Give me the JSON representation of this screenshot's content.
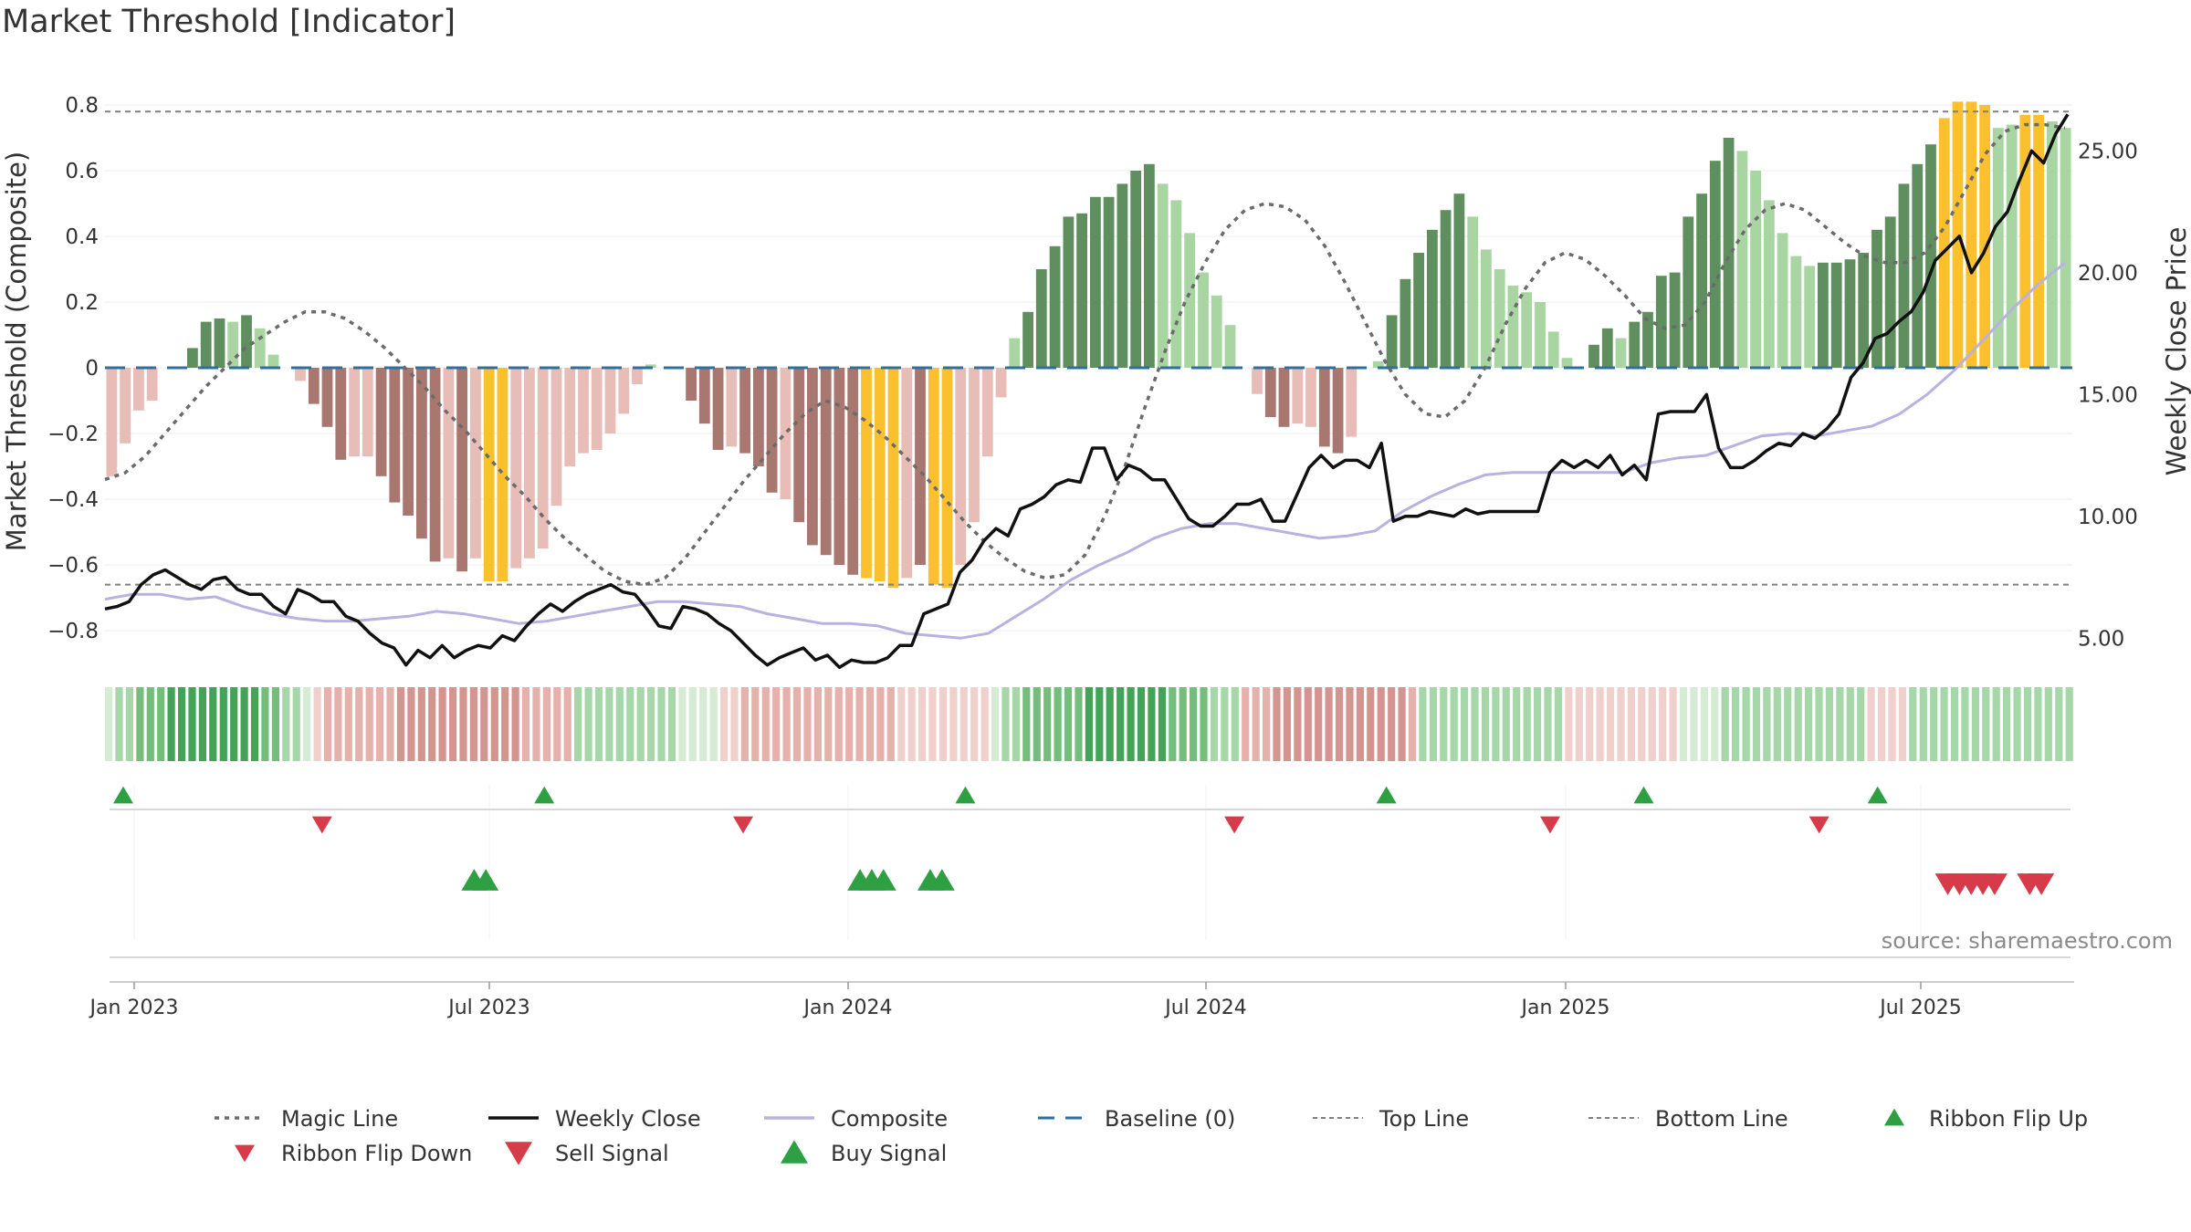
{
  "title": "Market Threshold [Indicator]",
  "source": "source: sharemaestro.com",
  "colors": {
    "strong_up": "#5f8f5f",
    "weak_up": "#a8d5a2",
    "strong_down": "#a87870",
    "weak_down": "#e9bdb7",
    "extreme": "#fbc02d",
    "weekly_close": "#111111",
    "composite": "#b9b2e0",
    "magic_line": "#6b6b6b",
    "baseline": "#2f6f9f",
    "threshold": "#808080",
    "buy": "#2ea043",
    "sell": "#d73a49"
  },
  "chart_data": {
    "type": "bar",
    "title": "Market Threshold [Indicator]",
    "ylabel": "Market Threshold (Composite)",
    "y2label": "Weekly Close Price",
    "ylim": [
      -0.9,
      0.85
    ],
    "y2lim": [
      3.0,
      26.0
    ],
    "yticks": [
      "0.8",
      "0.6",
      "0.4",
      "0.2",
      "0",
      "−0.2",
      "−0.4",
      "−0.6",
      "−0.8"
    ],
    "y2ticks": [
      "25.00",
      "20.00",
      "15.00",
      "10.00",
      "5.00"
    ],
    "xticks": [
      "Jan 2023",
      "Jul 2023",
      "Jan 2024",
      "Jul 2024",
      "Jan 2025",
      "Jul 2025"
    ],
    "top_line": 0.78,
    "bottom_line": -0.66,
    "baseline": 0,
    "bars": [
      {
        "v": -0.33,
        "c": "weak_down"
      },
      {
        "v": -0.23,
        "c": "weak_down"
      },
      {
        "v": -0.13,
        "c": "weak_down"
      },
      {
        "v": -0.1,
        "c": "weak_down"
      },
      {
        "v": 0.0,
        "c": "weak_down"
      },
      {
        "v": 0.0,
        "c": "weak_up"
      },
      {
        "v": 0.06,
        "c": "strong_up"
      },
      {
        "v": 0.14,
        "c": "strong_up"
      },
      {
        "v": 0.15,
        "c": "strong_up"
      },
      {
        "v": 0.14,
        "c": "weak_up"
      },
      {
        "v": 0.16,
        "c": "strong_up"
      },
      {
        "v": 0.12,
        "c": "weak_up"
      },
      {
        "v": 0.04,
        "c": "weak_up"
      },
      {
        "v": 0.0,
        "c": "weak_up"
      },
      {
        "v": -0.04,
        "c": "weak_down"
      },
      {
        "v": -0.11,
        "c": "strong_down"
      },
      {
        "v": -0.18,
        "c": "strong_down"
      },
      {
        "v": -0.28,
        "c": "strong_down"
      },
      {
        "v": -0.27,
        "c": "weak_down"
      },
      {
        "v": -0.27,
        "c": "weak_down"
      },
      {
        "v": -0.33,
        "c": "strong_down"
      },
      {
        "v": -0.41,
        "c": "strong_down"
      },
      {
        "v": -0.45,
        "c": "strong_down"
      },
      {
        "v": -0.52,
        "c": "strong_down"
      },
      {
        "v": -0.59,
        "c": "strong_down"
      },
      {
        "v": -0.58,
        "c": "weak_down"
      },
      {
        "v": -0.62,
        "c": "strong_down"
      },
      {
        "v": -0.58,
        "c": "weak_down"
      },
      {
        "v": -0.65,
        "c": "extreme"
      },
      {
        "v": -0.65,
        "c": "extreme"
      },
      {
        "v": -0.61,
        "c": "weak_down"
      },
      {
        "v": -0.58,
        "c": "weak_down"
      },
      {
        "v": -0.55,
        "c": "weak_down"
      },
      {
        "v": -0.42,
        "c": "weak_down"
      },
      {
        "v": -0.3,
        "c": "weak_down"
      },
      {
        "v": -0.26,
        "c": "weak_down"
      },
      {
        "v": -0.25,
        "c": "weak_down"
      },
      {
        "v": -0.2,
        "c": "weak_down"
      },
      {
        "v": -0.14,
        "c": "weak_down"
      },
      {
        "v": -0.05,
        "c": "weak_down"
      },
      {
        "v": 0.01,
        "c": "weak_up"
      },
      {
        "v": 0.0,
        "c": "weak_up"
      },
      {
        "v": 0.0,
        "c": "weak_up"
      },
      {
        "v": -0.1,
        "c": "strong_down"
      },
      {
        "v": -0.17,
        "c": "strong_down"
      },
      {
        "v": -0.25,
        "c": "strong_down"
      },
      {
        "v": -0.24,
        "c": "weak_down"
      },
      {
        "v": -0.26,
        "c": "strong_down"
      },
      {
        "v": -0.3,
        "c": "strong_down"
      },
      {
        "v": -0.38,
        "c": "strong_down"
      },
      {
        "v": -0.4,
        "c": "weak_down"
      },
      {
        "v": -0.47,
        "c": "strong_down"
      },
      {
        "v": -0.54,
        "c": "strong_down"
      },
      {
        "v": -0.57,
        "c": "strong_down"
      },
      {
        "v": -0.6,
        "c": "strong_down"
      },
      {
        "v": -0.63,
        "c": "strong_down"
      },
      {
        "v": -0.64,
        "c": "extreme"
      },
      {
        "v": -0.65,
        "c": "extreme"
      },
      {
        "v": -0.67,
        "c": "extreme"
      },
      {
        "v": -0.64,
        "c": "weak_down"
      },
      {
        "v": -0.6,
        "c": "strong_down"
      },
      {
        "v": -0.66,
        "c": "extreme"
      },
      {
        "v": -0.67,
        "c": "extreme"
      },
      {
        "v": -0.6,
        "c": "weak_down"
      },
      {
        "v": -0.47,
        "c": "weak_down"
      },
      {
        "v": -0.27,
        "c": "weak_down"
      },
      {
        "v": -0.09,
        "c": "weak_down"
      },
      {
        "v": 0.09,
        "c": "weak_up"
      },
      {
        "v": 0.17,
        "c": "strong_up"
      },
      {
        "v": 0.3,
        "c": "strong_up"
      },
      {
        "v": 0.37,
        "c": "strong_up"
      },
      {
        "v": 0.46,
        "c": "strong_up"
      },
      {
        "v": 0.47,
        "c": "strong_up"
      },
      {
        "v": 0.52,
        "c": "strong_up"
      },
      {
        "v": 0.52,
        "c": "strong_up"
      },
      {
        "v": 0.56,
        "c": "strong_up"
      },
      {
        "v": 0.6,
        "c": "strong_up"
      },
      {
        "v": 0.62,
        "c": "strong_up"
      },
      {
        "v": 0.56,
        "c": "weak_up"
      },
      {
        "v": 0.51,
        "c": "weak_up"
      },
      {
        "v": 0.41,
        "c": "weak_up"
      },
      {
        "v": 0.29,
        "c": "weak_up"
      },
      {
        "v": 0.22,
        "c": "weak_up"
      },
      {
        "v": 0.13,
        "c": "weak_up"
      },
      {
        "v": 0.0,
        "c": "weak_up"
      },
      {
        "v": -0.08,
        "c": "weak_down"
      },
      {
        "v": -0.15,
        "c": "strong_down"
      },
      {
        "v": -0.18,
        "c": "strong_down"
      },
      {
        "v": -0.17,
        "c": "weak_down"
      },
      {
        "v": -0.18,
        "c": "weak_down"
      },
      {
        "v": -0.24,
        "c": "strong_down"
      },
      {
        "v": -0.26,
        "c": "strong_down"
      },
      {
        "v": -0.21,
        "c": "weak_down"
      },
      {
        "v": 0.0,
        "c": "weak_up"
      },
      {
        "v": 0.02,
        "c": "weak_up"
      },
      {
        "v": 0.16,
        "c": "strong_up"
      },
      {
        "v": 0.27,
        "c": "strong_up"
      },
      {
        "v": 0.35,
        "c": "strong_up"
      },
      {
        "v": 0.42,
        "c": "strong_up"
      },
      {
        "v": 0.48,
        "c": "strong_up"
      },
      {
        "v": 0.53,
        "c": "strong_up"
      },
      {
        "v": 0.46,
        "c": "weak_up"
      },
      {
        "v": 0.36,
        "c": "weak_up"
      },
      {
        "v": 0.3,
        "c": "weak_up"
      },
      {
        "v": 0.25,
        "c": "weak_up"
      },
      {
        "v": 0.23,
        "c": "weak_up"
      },
      {
        "v": 0.2,
        "c": "weak_up"
      },
      {
        "v": 0.11,
        "c": "weak_up"
      },
      {
        "v": 0.03,
        "c": "weak_up"
      },
      {
        "v": 0.0,
        "c": "weak_up"
      },
      {
        "v": 0.07,
        "c": "strong_up"
      },
      {
        "v": 0.12,
        "c": "strong_up"
      },
      {
        "v": 0.09,
        "c": "weak_up"
      },
      {
        "v": 0.14,
        "c": "strong_up"
      },
      {
        "v": 0.17,
        "c": "strong_up"
      },
      {
        "v": 0.28,
        "c": "strong_up"
      },
      {
        "v": 0.29,
        "c": "strong_up"
      },
      {
        "v": 0.46,
        "c": "strong_up"
      },
      {
        "v": 0.53,
        "c": "strong_up"
      },
      {
        "v": 0.63,
        "c": "strong_up"
      },
      {
        "v": 0.7,
        "c": "strong_up"
      },
      {
        "v": 0.66,
        "c": "weak_up"
      },
      {
        "v": 0.6,
        "c": "weak_up"
      },
      {
        "v": 0.51,
        "c": "weak_up"
      },
      {
        "v": 0.41,
        "c": "weak_up"
      },
      {
        "v": 0.34,
        "c": "weak_up"
      },
      {
        "v": 0.31,
        "c": "weak_up"
      },
      {
        "v": 0.32,
        "c": "strong_up"
      },
      {
        "v": 0.32,
        "c": "strong_up"
      },
      {
        "v": 0.33,
        "c": "strong_up"
      },
      {
        "v": 0.35,
        "c": "strong_up"
      },
      {
        "v": 0.42,
        "c": "strong_up"
      },
      {
        "v": 0.46,
        "c": "strong_up"
      },
      {
        "v": 0.56,
        "c": "strong_up"
      },
      {
        "v": 0.62,
        "c": "strong_up"
      },
      {
        "v": 0.68,
        "c": "strong_up"
      },
      {
        "v": 0.76,
        "c": "extreme"
      },
      {
        "v": 0.81,
        "c": "extreme"
      },
      {
        "v": 0.81,
        "c": "extreme"
      },
      {
        "v": 0.8,
        "c": "extreme"
      },
      {
        "v": 0.73,
        "c": "weak_up"
      },
      {
        "v": 0.74,
        "c": "weak_up"
      },
      {
        "v": 0.77,
        "c": "extreme"
      },
      {
        "v": 0.77,
        "c": "extreme"
      },
      {
        "v": 0.75,
        "c": "weak_up"
      },
      {
        "v": 0.73,
        "c": "weak_up"
      }
    ],
    "magic_line": [
      -0.34,
      -0.32,
      -0.27,
      -0.2,
      -0.13,
      -0.06,
      0.0,
      0.06,
      0.1,
      0.14,
      0.17,
      0.17,
      0.15,
      0.11,
      0.06,
      0.0,
      -0.06,
      -0.13,
      -0.19,
      -0.26,
      -0.33,
      -0.39,
      -0.46,
      -0.52,
      -0.57,
      -0.62,
      -0.65,
      -0.66,
      -0.64,
      -0.58,
      -0.5,
      -0.42,
      -0.34,
      -0.27,
      -0.2,
      -0.14,
      -0.1,
      -0.12,
      -0.16,
      -0.21,
      -0.27,
      -0.33,
      -0.4,
      -0.47,
      -0.53,
      -0.58,
      -0.62,
      -0.64,
      -0.63,
      -0.57,
      -0.45,
      -0.3,
      -0.12,
      0.05,
      0.2,
      0.32,
      0.42,
      0.48,
      0.5,
      0.49,
      0.45,
      0.37,
      0.26,
      0.14,
      0.02,
      -0.08,
      -0.14,
      -0.15,
      -0.1,
      0.0,
      0.13,
      0.24,
      0.32,
      0.35,
      0.33,
      0.28,
      0.22,
      0.15,
      0.12,
      0.13,
      0.2,
      0.32,
      0.42,
      0.48,
      0.5,
      0.48,
      0.43,
      0.38,
      0.34,
      0.32,
      0.32,
      0.35,
      0.43,
      0.54,
      0.65,
      0.72,
      0.74,
      0.74,
      0.73
    ],
    "weekly_close": [
      6.2,
      6.3,
      6.5,
      7.2,
      7.6,
      7.8,
      7.5,
      7.2,
      7.0,
      7.4,
      7.5,
      7.0,
      6.8,
      6.8,
      6.3,
      6.0,
      7.0,
      6.8,
      6.5,
      6.5,
      5.9,
      5.7,
      5.2,
      4.8,
      4.6,
      3.9,
      4.5,
      4.2,
      4.7,
      4.2,
      4.5,
      4.7,
      4.6,
      5.1,
      4.9,
      5.5,
      6.0,
      6.4,
      6.1,
      6.5,
      6.8,
      7.0,
      7.2,
      6.9,
      6.8,
      6.2,
      5.5,
      5.4,
      6.3,
      6.2,
      6.0,
      5.6,
      5.3,
      4.8,
      4.3,
      3.9,
      4.2,
      4.4,
      4.6,
      4.1,
      4.3,
      3.8,
      4.1,
      4.0,
      4.0,
      4.2,
      4.7,
      4.7,
      6.0,
      6.2,
      6.4,
      7.7,
      8.2,
      9.0,
      9.5,
      9.2,
      10.3,
      10.5,
      10.8,
      11.3,
      11.5,
      11.4,
      12.8,
      12.8,
      11.5,
      12.1,
      11.9,
      11.5,
      11.5,
      10.7,
      9.9,
      9.6,
      9.6,
      10.0,
      10.5,
      10.5,
      10.7,
      9.8,
      9.8,
      10.9,
      12.0,
      12.5,
      12.0,
      12.3,
      12.3,
      12.0,
      13.0,
      9.8,
      10.0,
      10.0,
      10.2,
      10.1,
      10.0,
      10.3,
      10.1,
      10.2,
      10.2,
      10.2,
      10.2,
      10.2,
      11.8,
      12.3,
      12.0,
      12.3,
      12.0,
      12.5,
      11.7,
      12.1,
      11.5,
      14.2,
      14.3,
      14.3,
      14.3,
      15.0,
      12.8,
      12.0,
      12.0,
      12.3,
      12.7,
      13.0,
      12.9,
      13.4,
      13.2,
      13.6,
      14.2,
      15.7,
      16.3,
      17.3,
      17.5,
      18.0,
      18.4,
      19.2,
      20.5,
      21.0,
      21.5,
      20.0,
      20.8,
      21.9,
      22.5,
      23.8,
      25.0,
      24.5,
      25.7,
      26.5
    ],
    "composite": [
      6.6,
      6.8,
      6.8,
      6.6,
      6.7,
      6.3,
      6.0,
      5.8,
      5.7,
      5.7,
      5.8,
      5.9,
      6.1,
      6.0,
      5.8,
      5.6,
      5.7,
      5.9,
      6.1,
      6.3,
      6.5,
      6.5,
      6.4,
      6.3,
      6.0,
      5.8,
      5.6,
      5.6,
      5.5,
      5.2,
      5.1,
      5.0,
      5.2,
      5.9,
      6.6,
      7.4,
      8.0,
      8.5,
      9.1,
      9.5,
      9.7,
      9.7,
      9.5,
      9.3,
      9.1,
      9.2,
      9.4,
      10.2,
      10.8,
      11.3,
      11.7,
      11.8,
      11.8,
      11.8,
      11.8,
      11.8,
      12.2,
      12.4,
      12.5,
      12.9,
      13.3,
      13.4,
      13.3,
      13.5,
      13.7,
      14.2,
      15.0,
      16.0,
      17.2,
      18.4,
      19.5,
      20.4
    ],
    "ribbon": [
      "a1",
      "a2",
      "a2",
      "a3",
      "a3",
      "a3",
      "a4",
      "a4",
      "a4",
      "a4",
      "a4",
      "a4",
      "a4",
      "a4",
      "a4",
      "a3",
      "a3",
      "a2",
      "a2",
      "a1",
      "b1",
      "b2",
      "b2",
      "b2",
      "b2",
      "b2",
      "b2",
      "b2",
      "b3",
      "b3",
      "b3",
      "b3",
      "b3",
      "b3",
      "b3",
      "b3",
      "b3",
      "b3",
      "b3",
      "b3",
      "b2",
      "b2",
      "b2",
      "b2",
      "b2",
      "a2",
      "a2",
      "a2",
      "a2",
      "a2",
      "a2",
      "a2",
      "a2",
      "a2",
      "a2",
      "a1",
      "a1",
      "a1",
      "a1",
      "b1",
      "b1",
      "b2",
      "b2",
      "b2",
      "b2",
      "b2",
      "b2",
      "b2",
      "b2",
      "b2",
      "b2",
      "b2",
      "b2",
      "b2",
      "b2",
      "b2",
      "b1",
      "b1",
      "b1",
      "b1",
      "b1",
      "b1",
      "b1",
      "b1",
      "b1",
      "a1",
      "a2",
      "a2",
      "a3",
      "a3",
      "a3",
      "a3",
      "a3",
      "a3",
      "a4",
      "a4",
      "a4",
      "a4",
      "a4",
      "a4",
      "a4",
      "a4",
      "a3",
      "a3",
      "a3",
      "a3",
      "a2",
      "a2",
      "a2",
      "b2",
      "b2",
      "b2",
      "b3",
      "b3",
      "b3",
      "b3",
      "b3",
      "b3",
      "b3",
      "b3",
      "b3",
      "b3",
      "b3",
      "b3",
      "b3",
      "b2",
      "a2",
      "a2",
      "a2",
      "a2",
      "a2",
      "a2",
      "a2",
      "a2",
      "a2",
      "a2",
      "a2",
      "a2",
      "a2",
      "a2",
      "b1",
      "b1",
      "b1",
      "b1",
      "b1",
      "b1",
      "b1",
      "b1",
      "b1",
      "b1",
      "b1",
      "a1",
      "a1",
      "a1",
      "a1",
      "a2",
      "a2",
      "a2",
      "a2",
      "a2",
      "a2",
      "a2",
      "a2",
      "a2",
      "a2",
      "a2",
      "a2",
      "a2",
      "a2",
      "b1",
      "b1",
      "b1",
      "b1",
      "a2",
      "a2",
      "a2",
      "a2",
      "a2",
      "a2",
      "a2",
      "a2",
      "a2",
      "a2",
      "a2",
      "a2",
      "a2",
      "a2",
      "a2",
      "a2"
    ],
    "ribbon_flip_up_weeks": [
      0,
      36,
      72,
      108,
      130,
      150
    ],
    "ribbon_flip_down_weeks": [
      17,
      53,
      95,
      122,
      145
    ],
    "buy_signal_weeks": [
      30,
      31,
      63,
      64,
      65,
      69,
      70
    ],
    "sell_signal_weeks": [
      156,
      157,
      158,
      159,
      160,
      163,
      164
    ],
    "legend": [
      {
        "label": "Magic Line",
        "kind": "magic"
      },
      {
        "label": "Weekly Close",
        "kind": "close"
      },
      {
        "label": "Composite",
        "kind": "composite"
      },
      {
        "label": "Baseline (0)",
        "kind": "baseline"
      },
      {
        "label": "Top Line",
        "kind": "top"
      },
      {
        "label": "Bottom Line",
        "kind": "bottom"
      },
      {
        "label": "Ribbon Flip Up",
        "kind": "flip_up"
      },
      {
        "label": "Ribbon Flip Down",
        "kind": "flip_down"
      },
      {
        "label": "Sell Signal",
        "kind": "sell"
      },
      {
        "label": "Buy Signal",
        "kind": "buy"
      }
    ]
  }
}
